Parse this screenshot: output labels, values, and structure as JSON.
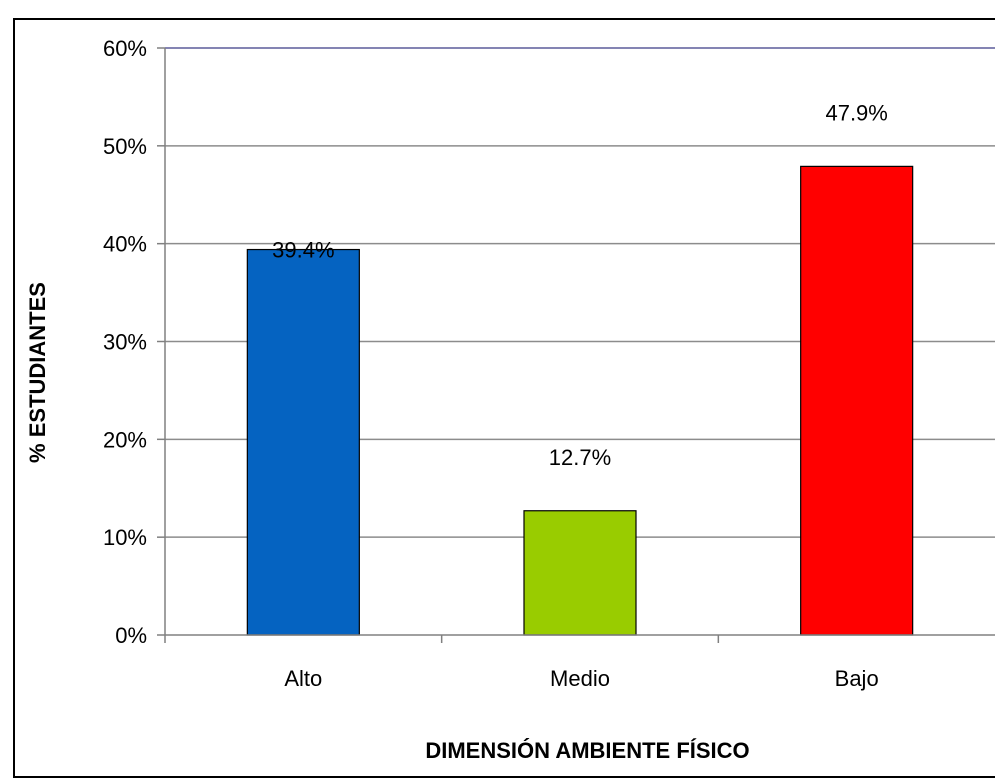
{
  "chart_data": {
    "type": "bar",
    "categories": [
      "Alto",
      "Medio",
      "Bajo"
    ],
    "values": [
      39.4,
      12.7,
      47.9
    ],
    "data_labels": [
      "39.4%",
      "12.7%",
      "47.9%"
    ],
    "colors": [
      "#0563C1",
      "#99CC00",
      "#FF0000"
    ],
    "title": "",
    "xlabel": "DIMENSIÓN AMBIENTE FÍSICO",
    "ylabel": "% ESTUDIANTES",
    "ylim": [
      0,
      60
    ],
    "yticks": [
      0,
      10,
      20,
      30,
      40,
      50,
      60
    ],
    "ytick_labels": [
      "0%",
      "10%",
      "20%",
      "30%",
      "40%",
      "50%",
      "60%"
    ],
    "grid": true,
    "legend": "none"
  }
}
